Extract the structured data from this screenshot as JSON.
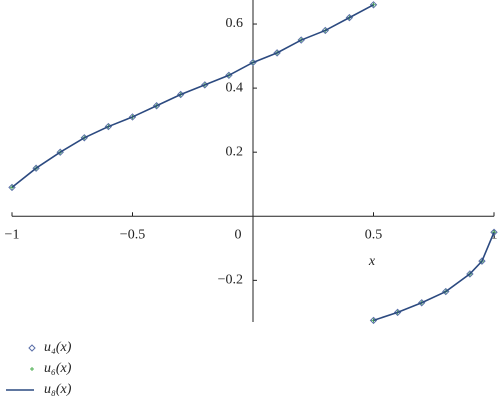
{
  "chart_data": {
    "type": "line",
    "x_label": "x",
    "x": [
      -1,
      -0.9,
      -0.8,
      -0.7,
      -0.6,
      -0.5,
      -0.4,
      -0.3,
      -0.2,
      -0.1,
      0,
      0.1,
      0.2,
      0.3,
      0.4,
      0.5,
      null,
      0.5,
      0.6,
      0.7,
      0.8,
      0.9,
      0.95,
      1
    ],
    "series": [
      {
        "name": "u₄(x)",
        "color": "#5a6fa8",
        "marker": "diamond",
        "values": [
          0.09,
          0.15,
          0.2,
          0.245,
          0.28,
          0.31,
          0.345,
          0.38,
          0.41,
          0.44,
          0.48,
          0.51,
          0.55,
          0.58,
          0.62,
          0.66,
          null,
          -0.325,
          -0.3,
          -0.27,
          -0.235,
          -0.18,
          -0.14,
          -0.05
        ]
      },
      {
        "name": "u₆(x)",
        "color": "#4caf50",
        "marker": "plus",
        "values": [
          0.09,
          0.15,
          0.2,
          0.245,
          0.28,
          0.31,
          0.345,
          0.38,
          0.41,
          0.44,
          0.48,
          0.51,
          0.55,
          0.58,
          0.62,
          0.66,
          null,
          -0.325,
          -0.3,
          -0.27,
          -0.235,
          -0.18,
          -0.14,
          -0.05
        ]
      },
      {
        "name": "u₈(x)",
        "color": "#2c4a80",
        "marker": "line",
        "values": [
          0.09,
          0.15,
          0.2,
          0.245,
          0.28,
          0.31,
          0.345,
          0.38,
          0.41,
          0.44,
          0.48,
          0.51,
          0.55,
          0.58,
          0.62,
          0.66,
          null,
          -0.325,
          -0.3,
          -0.27,
          -0.235,
          -0.18,
          -0.14,
          -0.05
        ]
      }
    ],
    "xlim": [
      -1,
      1
    ],
    "ylim": [
      -0.33,
      0.675
    ],
    "xticks": [
      {
        "value": -1,
        "label": "−1"
      },
      {
        "value": -0.5,
        "label": "−0.5"
      },
      0,
      0.5,
      1
    ],
    "yticks": [
      {
        "value": -0.2,
        "label": "−0.2"
      },
      0.2,
      0.4,
      0.6
    ],
    "legend": "bottom-left"
  }
}
